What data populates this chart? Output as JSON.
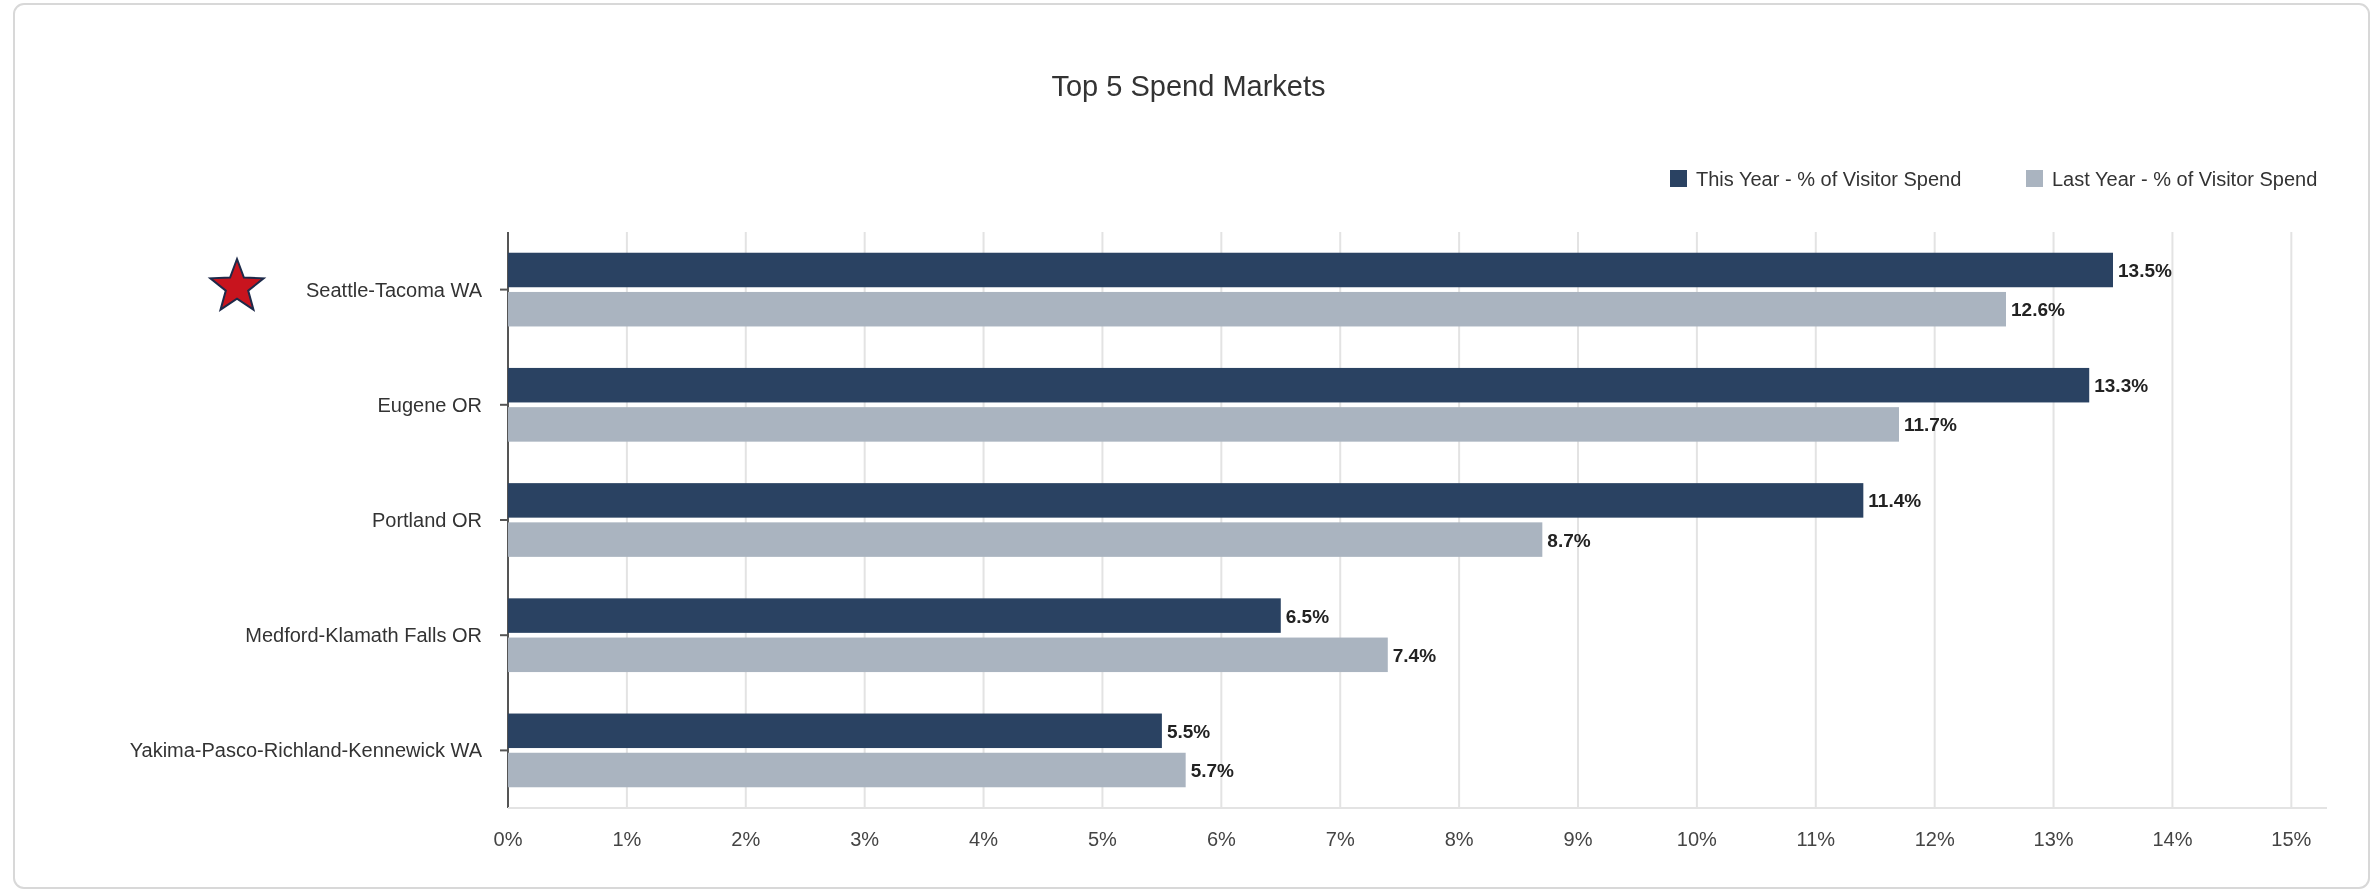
{
  "chart_data": {
    "type": "bar",
    "orientation": "horizontal",
    "title": "Top 5 Spend Markets",
    "categories": [
      "Seattle-Tacoma WA",
      "Eugene OR",
      "Portland OR",
      "Medford-Klamath Falls OR",
      "Yakima-Pasco-Richland-Kennewick WA"
    ],
    "series": [
      {
        "name": "This Year - % of Visitor Spend",
        "color": "#2a4262",
        "values": [
          13.5,
          13.3,
          11.4,
          6.5,
          5.5
        ],
        "value_labels": [
          "13.5%",
          "13.3%",
          "11.4%",
          "6.5%",
          "5.5%"
        ]
      },
      {
        "name": "Last Year - % of Visitor Spend",
        "color": "#aab4c0",
        "values": [
          12.6,
          11.7,
          8.7,
          7.4,
          5.7
        ],
        "value_labels": [
          "12.6%",
          "11.7%",
          "8.7%",
          "7.4%",
          "5.7%"
        ]
      }
    ],
    "xlim": [
      0,
      15.3
    ],
    "xticks": [
      {
        "value": 0,
        "label": "0%"
      },
      {
        "value": 1,
        "label": "1%"
      },
      {
        "value": 2,
        "label": "2%"
      },
      {
        "value": 3,
        "label": "3%"
      },
      {
        "value": 4,
        "label": "4%"
      },
      {
        "value": 5,
        "label": "5%"
      },
      {
        "value": 6,
        "label": "6%"
      },
      {
        "value": 7,
        "label": "7%"
      },
      {
        "value": 8,
        "label": "8%"
      },
      {
        "value": 9,
        "label": "9%"
      },
      {
        "value": 10,
        "label": "10%"
      },
      {
        "value": 11,
        "label": "11%"
      },
      {
        "value": 12,
        "label": "12%"
      },
      {
        "value": 13,
        "label": "13%"
      },
      {
        "value": 14,
        "label": "14%"
      },
      {
        "value": 15,
        "label": "15%"
      }
    ],
    "grid": "x",
    "legend": "top right"
  }
}
